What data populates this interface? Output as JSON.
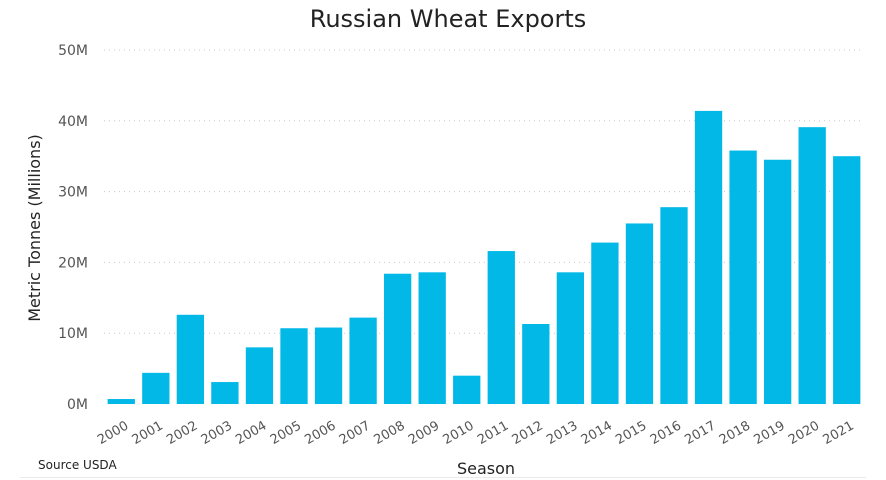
{
  "chart_data": {
    "type": "bar",
    "title": "Russian Wheat Exports",
    "xlabel": "Season",
    "ylabel": "Metric Tonnes (Millions)",
    "source": "Source USDA",
    "categories": [
      "2000",
      "2001",
      "2002",
      "2003",
      "2004",
      "2005",
      "2006",
      "2007",
      "2008",
      "2009",
      "2010",
      "2011",
      "2012",
      "2013",
      "2014",
      "2015",
      "2016",
      "2017",
      "2018",
      "2019",
      "2020",
      "2021"
    ],
    "values": [
      0.7,
      4.4,
      12.6,
      3.1,
      8.0,
      10.7,
      10.8,
      12.2,
      18.4,
      18.6,
      4.0,
      21.6,
      11.3,
      18.6,
      22.8,
      25.5,
      27.8,
      41.4,
      35.8,
      34.5,
      39.1,
      35.0
    ],
    "value_unit": "million metric tonnes",
    "y_ticks": [
      "0M",
      "10M",
      "20M",
      "30M",
      "40M",
      "50M"
    ],
    "ylim": [
      0,
      50
    ],
    "grid": true,
    "legend": "none",
    "colors": {
      "bar": "#01B8E6",
      "gridline": "#c8c8c8",
      "title": "#222222",
      "axis_text": "#555555",
      "axis_title": "#222222"
    }
  }
}
